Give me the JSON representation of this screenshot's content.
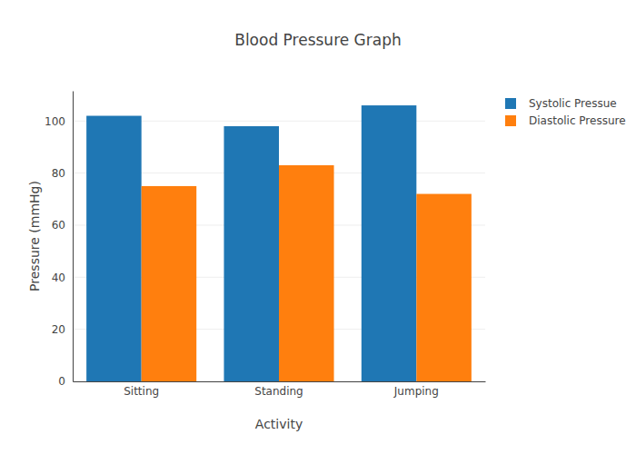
{
  "chart_data": {
    "type": "bar",
    "title": "Blood Pressure Graph",
    "x_label": "Activity",
    "y_label": "Pressure (mmHg)",
    "categories": [
      "Sitting",
      "Standing",
      "Jumping"
    ],
    "series": [
      {
        "name": "Systolic Pressue",
        "color": "#1f77b4",
        "values": [
          102,
          98,
          106
        ]
      },
      {
        "name": "Diastolic Pressure",
        "color": "#ff7f0e",
        "values": [
          75,
          83,
          72
        ]
      }
    ],
    "ylim": [
      0,
      111.6
    ],
    "yticks": [
      0,
      20,
      40,
      60,
      80,
      100
    ],
    "grid": true,
    "legend": "top-right"
  }
}
